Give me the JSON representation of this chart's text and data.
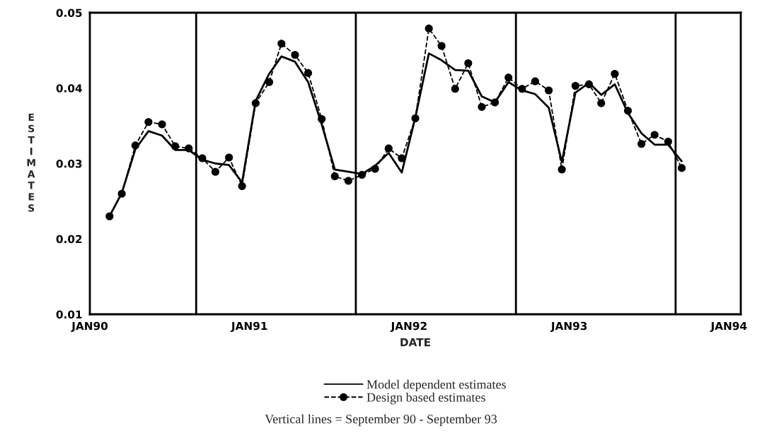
{
  "chart_data": {
    "type": "line",
    "xlabel": "DATE",
    "ylabel": "ESTIMATES",
    "x": [
      "1990-02-15",
      "1990-03-15",
      "1990-04-15",
      "1990-05-15",
      "1990-06-15",
      "1990-07-15",
      "1990-08-15",
      "1990-09-15",
      "1990-10-15",
      "1990-11-15",
      "1990-12-15",
      "1991-01-15",
      "1991-02-15",
      "1991-03-15",
      "1991-04-15",
      "1991-05-15",
      "1991-06-15",
      "1991-07-15",
      "1991-08-15",
      "1991-09-15",
      "1991-10-15",
      "1991-11-15",
      "1991-12-15",
      "1992-01-15",
      "1992-02-15",
      "1992-03-15",
      "1992-04-15",
      "1992-05-15",
      "1992-06-15",
      "1992-07-15",
      "1992-08-15",
      "1992-09-15",
      "1992-10-15",
      "1992-11-15",
      "1992-12-15",
      "1993-01-15",
      "1993-02-15",
      "1993-03-15",
      "1993-04-15",
      "1993-05-15",
      "1993-06-15",
      "1993-07-15",
      "1993-08-15",
      "1993-09-15"
    ],
    "series": [
      {
        "name": "Model dependent estimates",
        "color": "#000000",
        "line_style": "solid",
        "marker": "none",
        "values": [
          0.023,
          0.0261,
          0.0319,
          0.0343,
          0.0337,
          0.0318,
          0.0318,
          0.0305,
          0.03,
          0.0298,
          0.0275,
          0.0383,
          0.0419,
          0.0442,
          0.0435,
          0.0408,
          0.0352,
          0.0292,
          0.0289,
          0.0286,
          0.0297,
          0.0314,
          0.0288,
          0.0361,
          0.0446,
          0.0437,
          0.0424,
          0.0423,
          0.0389,
          0.0381,
          0.0408,
          0.0397,
          0.0392,
          0.0374,
          0.0302,
          0.0394,
          0.0407,
          0.0391,
          0.0405,
          0.0367,
          0.034,
          0.0325,
          0.0325,
          0.0303
        ]
      },
      {
        "name": "Design based estimates",
        "color": "#000000",
        "line_style": "dashed",
        "marker": "circle",
        "values": [
          0.023,
          0.026,
          0.0324,
          0.0355,
          0.0352,
          0.0323,
          0.032,
          0.0307,
          0.0289,
          0.0308,
          0.027,
          0.038,
          0.0408,
          0.0459,
          0.0444,
          0.042,
          0.0359,
          0.0283,
          0.0277,
          0.0285,
          0.0293,
          0.032,
          0.0307,
          0.036,
          0.0479,
          0.0456,
          0.0399,
          0.0433,
          0.0375,
          0.0381,
          0.0414,
          0.0399,
          0.0409,
          0.0397,
          0.0292,
          0.0403,
          0.0405,
          0.038,
          0.0419,
          0.037,
          0.0326,
          0.0338,
          0.0329,
          0.0294
        ]
      }
    ],
    "xlim": [
      "1990-01-01",
      "1994-01-28"
    ],
    "xticks": [
      {
        "value": "1990-01-01",
        "label": "JAN90"
      },
      {
        "value": "1991-01-01",
        "label": "JAN91"
      },
      {
        "value": "1992-01-01",
        "label": "JAN92"
      },
      {
        "value": "1993-01-01",
        "label": "JAN93"
      },
      {
        "value": "1994-01-01",
        "label": "JAN94"
      }
    ],
    "ylim": [
      0.01,
      0.05
    ],
    "yticks": [
      {
        "value": 0.01,
        "label": "0.01"
      },
      {
        "value": 0.02,
        "label": "0.02"
      },
      {
        "value": 0.03,
        "label": "0.03"
      },
      {
        "value": 0.04,
        "label": "0.04"
      },
      {
        "value": 0.05,
        "label": "0.05"
      }
    ],
    "ref_lines": [
      {
        "axis": "x",
        "value": "1990-09-01",
        "color": "#000000"
      },
      {
        "axis": "x",
        "value": "1991-09-01",
        "color": "#000000"
      },
      {
        "axis": "x",
        "value": "1992-09-01",
        "color": "#000000"
      },
      {
        "axis": "x",
        "value": "1993-09-01",
        "color": "#000000"
      }
    ],
    "annotations": [
      "Vertical lines = September 90 - September 93"
    ],
    "grid": false,
    "legend": "bottom"
  }
}
